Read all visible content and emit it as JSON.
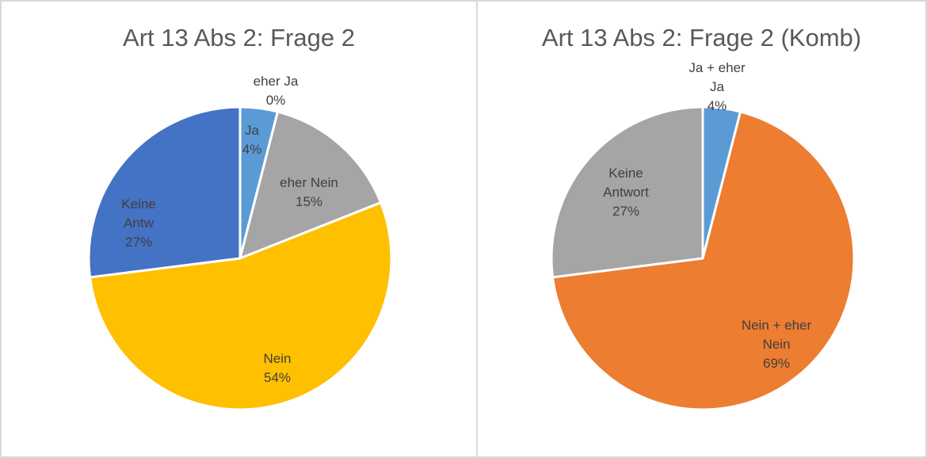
{
  "chart_data": [
    {
      "type": "pie",
      "title": "Art 13 Abs 2: Frage 2",
      "categories": [
        "Ja",
        "eher Ja",
        "eher Nein",
        "Nein",
        "Keine Antw"
      ],
      "values": [
        4,
        0,
        15,
        54,
        27
      ],
      "value_labels": [
        "4%",
        "0%",
        "15%",
        "54%",
        "27%"
      ],
      "colors": [
        "#5b9bd5",
        "#ed7d31",
        "#a5a5a5",
        "#ffc000",
        "#4472c4"
      ]
    },
    {
      "type": "pie",
      "title": "Art 13 Abs 2: Frage 2 (Komb)",
      "categories": [
        "Ja + eher Ja",
        "Nein + eher Nein",
        "Keine Antwort"
      ],
      "values": [
        4,
        69,
        27
      ],
      "value_labels": [
        "4%",
        "69%",
        "27%"
      ],
      "colors": [
        "#5b9bd5",
        "#ed7d31",
        "#a5a5a5"
      ]
    }
  ]
}
